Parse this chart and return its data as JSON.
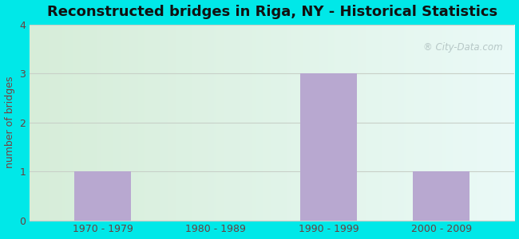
{
  "categories": [
    "1970 - 1979",
    "1980 - 1989",
    "1990 - 1999",
    "2000 - 2009"
  ],
  "values": [
    1,
    0,
    3,
    1
  ],
  "bar_color": "#b8a8d0",
  "title": "Reconstructed bridges in Riga, NY - Historical Statistics",
  "ylabel": "number of bridges",
  "ylim": [
    0,
    4
  ],
  "yticks": [
    0,
    1,
    2,
    3,
    4
  ],
  "outer_bg": "#00e8e8",
  "title_fontsize": 13,
  "axis_label_color": "#7a4040",
  "tick_label_color": "#6a4040",
  "grid_color": "#c8d0c8",
  "watermark": "City-Data.com",
  "bar_width": 0.5
}
